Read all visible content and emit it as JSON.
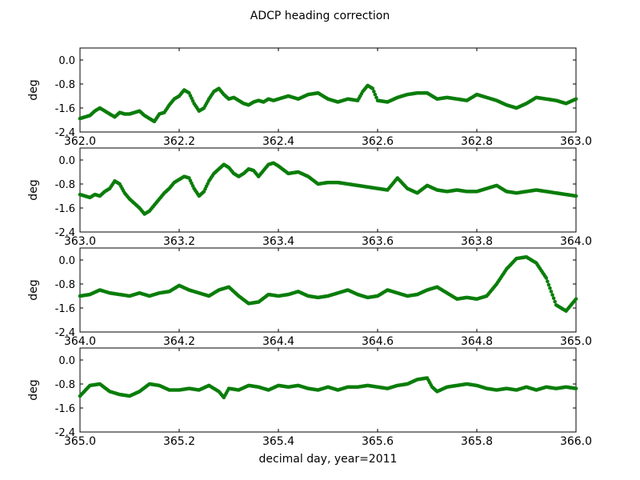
{
  "figure": {
    "title": "ADCP heading correction",
    "xlabel": "decimal day, year=2011"
  },
  "chart_data": [
    {
      "type": "scatter",
      "ylabel": "deg",
      "xlim": [
        362.0,
        363.0
      ],
      "ylim": [
        -2.4,
        0.4
      ],
      "xticks": [
        "362.0",
        "362.2",
        "362.4",
        "362.6",
        "362.8",
        "363.0"
      ],
      "yticks": [
        "0.0",
        "-0.8",
        "-1.6",
        "-2.4"
      ],
      "color": "#0a7d0a",
      "series": [
        {
          "x": [
            362.0,
            362.01,
            362.02,
            362.03,
            362.04,
            362.05,
            362.06,
            362.07,
            362.08,
            362.09,
            362.1,
            362.11,
            362.12,
            362.13,
            362.14,
            362.15,
            362.16,
            362.17,
            362.18,
            362.19,
            362.2,
            362.21,
            362.22,
            362.23,
            362.24,
            362.25,
            362.26,
            362.27,
            362.28,
            362.29,
            362.3,
            362.31,
            362.32,
            362.33,
            362.34,
            362.35,
            362.36,
            362.37,
            362.38,
            362.39,
            362.4,
            362.42,
            362.44,
            362.46,
            362.48,
            362.5,
            362.52,
            362.54,
            362.56,
            362.57,
            362.58,
            362.59,
            362.6,
            362.62,
            362.64,
            362.66,
            362.68,
            362.7,
            362.72,
            362.74,
            362.76,
            362.78,
            362.8,
            362.82,
            362.84,
            362.86,
            362.88,
            362.9,
            362.92,
            362.94,
            362.96,
            362.98,
            363.0
          ],
          "y": [
            -1.95,
            -1.9,
            -1.85,
            -1.7,
            -1.6,
            -1.7,
            -1.8,
            -1.9,
            -1.75,
            -1.8,
            -1.8,
            -1.75,
            -1.7,
            -1.85,
            -1.95,
            -2.05,
            -1.8,
            -1.75,
            -1.5,
            -1.3,
            -1.2,
            -1.0,
            -1.1,
            -1.45,
            -1.7,
            -1.6,
            -1.3,
            -1.05,
            -0.95,
            -1.15,
            -1.3,
            -1.25,
            -1.35,
            -1.45,
            -1.5,
            -1.4,
            -1.35,
            -1.4,
            -1.3,
            -1.35,
            -1.3,
            -1.2,
            -1.3,
            -1.15,
            -1.1,
            -1.3,
            -1.4,
            -1.3,
            -1.35,
            -1.05,
            -0.85,
            -0.95,
            -1.35,
            -1.4,
            -1.25,
            -1.15,
            -1.1,
            -1.1,
            -1.3,
            -1.25,
            -1.3,
            -1.35,
            -1.15,
            -1.25,
            -1.35,
            -1.5,
            -1.6,
            -1.45,
            -1.25,
            -1.3,
            -1.35,
            -1.45,
            -1.3
          ]
        }
      ]
    },
    {
      "type": "scatter",
      "ylabel": "deg",
      "xlim": [
        363.0,
        364.0
      ],
      "ylim": [
        -2.4,
        0.4
      ],
      "xticks": [
        "363.0",
        "363.2",
        "363.4",
        "363.6",
        "363.8",
        "364.0"
      ],
      "yticks": [
        "0.0",
        "-0.8",
        "-1.6",
        "-2.4"
      ],
      "color": "#0a7d0a",
      "series": [
        {
          "x": [
            363.0,
            363.01,
            363.02,
            363.03,
            363.04,
            363.05,
            363.06,
            363.07,
            363.08,
            363.09,
            363.1,
            363.11,
            363.12,
            363.13,
            363.14,
            363.15,
            363.16,
            363.17,
            363.18,
            363.19,
            363.2,
            363.21,
            363.22,
            363.23,
            363.24,
            363.25,
            363.26,
            363.27,
            363.28,
            363.29,
            363.3,
            363.31,
            363.32,
            363.33,
            363.34,
            363.35,
            363.36,
            363.37,
            363.38,
            363.39,
            363.4,
            363.42,
            363.44,
            363.46,
            363.48,
            363.5,
            363.52,
            363.54,
            363.56,
            363.58,
            363.6,
            363.62,
            363.64,
            363.66,
            363.68,
            363.7,
            363.72,
            363.74,
            363.76,
            363.78,
            363.8,
            363.82,
            363.84,
            363.86,
            363.88,
            363.9,
            363.92,
            363.94,
            363.96,
            363.98,
            364.0
          ],
          "y": [
            -1.15,
            -1.2,
            -1.25,
            -1.15,
            -1.2,
            -1.05,
            -0.95,
            -0.7,
            -0.8,
            -1.1,
            -1.3,
            -1.45,
            -1.6,
            -1.8,
            -1.7,
            -1.5,
            -1.3,
            -1.1,
            -0.95,
            -0.75,
            -0.65,
            -0.55,
            -0.6,
            -0.95,
            -1.2,
            -1.05,
            -0.7,
            -0.45,
            -0.3,
            -0.15,
            -0.25,
            -0.45,
            -0.55,
            -0.45,
            -0.3,
            -0.35,
            -0.55,
            -0.35,
            -0.15,
            -0.1,
            -0.2,
            -0.45,
            -0.4,
            -0.55,
            -0.8,
            -0.75,
            -0.75,
            -0.8,
            -0.85,
            -0.9,
            -0.95,
            -1.0,
            -0.6,
            -0.95,
            -1.1,
            -0.85,
            -1.0,
            -1.05,
            -1.0,
            -1.05,
            -1.05,
            -0.95,
            -0.85,
            -1.05,
            -1.1,
            -1.05,
            -1.0,
            -1.05,
            -1.1,
            -1.15,
            -1.2
          ]
        }
      ]
    },
    {
      "type": "scatter",
      "ylabel": "deg",
      "xlim": [
        364.0,
        365.0
      ],
      "ylim": [
        -2.4,
        0.4
      ],
      "xticks": [
        "364.0",
        "364.2",
        "364.4",
        "364.6",
        "364.8",
        "365.0"
      ],
      "yticks": [
        "0.0",
        "-0.8",
        "-1.6",
        "-2.4"
      ],
      "color": "#0a7d0a",
      "series": [
        {
          "x": [
            364.0,
            364.02,
            364.04,
            364.06,
            364.08,
            364.1,
            364.12,
            364.14,
            364.16,
            364.18,
            364.2,
            364.22,
            364.24,
            364.26,
            364.28,
            364.3,
            364.32,
            364.34,
            364.36,
            364.38,
            364.4,
            364.42,
            364.44,
            364.46,
            364.48,
            364.5,
            364.52,
            364.54,
            364.56,
            364.58,
            364.6,
            364.62,
            364.64,
            364.66,
            364.68,
            364.7,
            364.72,
            364.74,
            364.76,
            364.78,
            364.8,
            364.82,
            364.84,
            364.86,
            364.88,
            364.9,
            364.92,
            364.94,
            364.96,
            364.98,
            365.0
          ],
          "y": [
            -1.2,
            -1.15,
            -1.0,
            -1.1,
            -1.15,
            -1.2,
            -1.1,
            -1.2,
            -1.1,
            -1.05,
            -0.85,
            -1.0,
            -1.1,
            -1.2,
            -1.0,
            -0.9,
            -1.2,
            -1.45,
            -1.4,
            -1.15,
            -1.2,
            -1.15,
            -1.05,
            -1.2,
            -1.25,
            -1.2,
            -1.1,
            -1.0,
            -1.15,
            -1.25,
            -1.2,
            -1.0,
            -1.1,
            -1.2,
            -1.15,
            -1.0,
            -0.9,
            -1.1,
            -1.3,
            -1.25,
            -1.3,
            -1.2,
            -0.8,
            -0.3,
            0.05,
            0.1,
            -0.1,
            -0.6,
            -1.5,
            -1.7,
            -1.3
          ]
        }
      ]
    },
    {
      "type": "scatter",
      "ylabel": "deg",
      "xlim": [
        365.0,
        366.0
      ],
      "ylim": [
        -2.4,
        0.4
      ],
      "xticks": [
        "365.0",
        "365.2",
        "365.4",
        "365.6",
        "365.8",
        "366.0"
      ],
      "yticks": [
        "0.0",
        "-0.8",
        "-1.6",
        "-2.4"
      ],
      "color": "#0a7d0a",
      "series": [
        {
          "x": [
            365.0,
            365.02,
            365.04,
            365.06,
            365.08,
            365.1,
            365.12,
            365.14,
            365.16,
            365.18,
            365.2,
            365.22,
            365.24,
            365.26,
            365.28,
            365.29,
            365.3,
            365.32,
            365.34,
            365.36,
            365.38,
            365.4,
            365.42,
            365.44,
            365.46,
            365.48,
            365.5,
            365.52,
            365.54,
            365.56,
            365.58,
            365.6,
            365.62,
            365.64,
            365.66,
            365.68,
            365.7,
            365.71,
            365.72,
            365.74,
            365.76,
            365.78,
            365.8,
            365.82,
            365.84,
            365.86,
            365.88,
            365.9,
            365.92,
            365.94,
            365.96,
            365.98,
            366.0
          ],
          "y": [
            -1.2,
            -0.85,
            -0.8,
            -1.05,
            -1.15,
            -1.2,
            -1.05,
            -0.8,
            -0.85,
            -1.0,
            -1.0,
            -0.95,
            -1.0,
            -0.85,
            -1.05,
            -1.25,
            -0.95,
            -1.0,
            -0.85,
            -0.9,
            -1.0,
            -0.85,
            -0.9,
            -0.85,
            -0.95,
            -1.0,
            -0.9,
            -1.0,
            -0.9,
            -0.9,
            -0.85,
            -0.9,
            -0.95,
            -0.85,
            -0.8,
            -0.65,
            -0.6,
            -0.9,
            -1.05,
            -0.9,
            -0.85,
            -0.8,
            -0.85,
            -0.95,
            -1.0,
            -0.95,
            -1.0,
            -0.9,
            -1.0,
            -0.9,
            -0.95,
            -0.9,
            -0.95
          ]
        }
      ]
    }
  ]
}
